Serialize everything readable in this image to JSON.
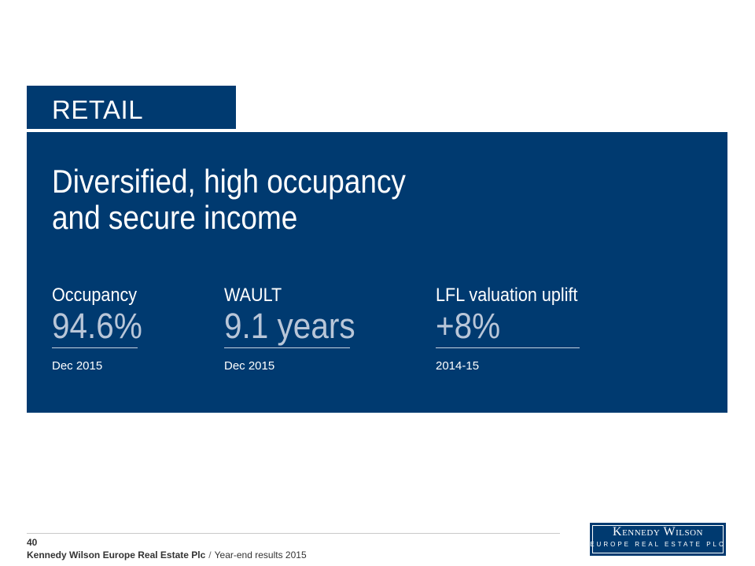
{
  "section_tab": "RETAIL",
  "headline": {
    "line1": "Diversified, high occupancy",
    "line2": "and secure income"
  },
  "stats": [
    {
      "label": "Occupancy",
      "value": "94.6%",
      "date": "Dec 2015"
    },
    {
      "label": "WAULT",
      "value": "9.1 years",
      "date": "Dec 2015"
    },
    {
      "label": "LFL valuation uplift",
      "value": "+8%",
      "date": "2014-15"
    }
  ],
  "footer": {
    "page_number": "40",
    "company": "Kennedy Wilson Europe Real Estate Plc",
    "separator": "/",
    "document": "Year-end results 2015"
  },
  "logo": {
    "name": "Kennedy Wilson",
    "subtitle": "EUROPE REAL ESTATE PLC"
  },
  "colors": {
    "brand_navy": "#003a70",
    "value_text": "#b9c6d8"
  }
}
